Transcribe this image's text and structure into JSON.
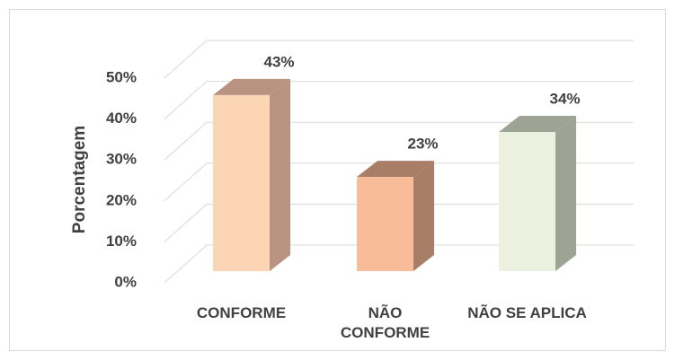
{
  "chart_data": {
    "type": "bar3d",
    "ylabel": "Porcentagem",
    "categories": [
      "CONFORME",
      "NÃO CONFORME",
      "NÃO SE APLICA"
    ],
    "values": [
      43,
      23,
      34
    ],
    "value_labels": [
      "43%",
      "23%",
      "34%"
    ],
    "colors": [
      "#fcd5b5",
      "#f8bd98",
      "#ebf1de"
    ],
    "side_colors": [
      "#b89480",
      "#a87f66",
      "#9ea493"
    ],
    "ylim": [
      0,
      50
    ],
    "yticks": [
      {
        "value": 0,
        "label": "0%"
      },
      {
        "value": 10,
        "label": "10%"
      },
      {
        "value": 20,
        "label": "20%"
      },
      {
        "value": 30,
        "label": "30%"
      },
      {
        "value": 40,
        "label": "40%"
      },
      {
        "value": 50,
        "label": "50%"
      }
    ],
    "grid": true
  }
}
